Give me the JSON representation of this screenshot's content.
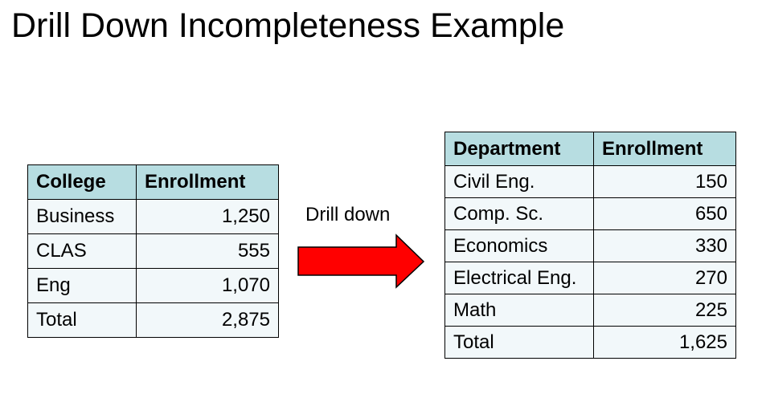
{
  "slide": {
    "title": "Drill Down Incompleteness Example"
  },
  "college_table": {
    "headers": [
      "College",
      "Enrollment"
    ],
    "rows": [
      {
        "name": "Business",
        "enrollment": "1,250"
      },
      {
        "name": "CLAS",
        "enrollment": "555"
      },
      {
        "name": "Eng",
        "enrollment": "1,070"
      },
      {
        "name": "Total",
        "enrollment": "2,875"
      }
    ]
  },
  "drill": {
    "label": "Drill down",
    "arrow_color": "#ff0000",
    "arrow_icon": "right-arrow-icon"
  },
  "department_table": {
    "headers": [
      "Department",
      "Enrollment"
    ],
    "rows": [
      {
        "name": "Civil Eng.",
        "enrollment": "150"
      },
      {
        "name": "Comp. Sc.",
        "enrollment": "650"
      },
      {
        "name": "Economics",
        "enrollment": "330"
      },
      {
        "name": "Electrical Eng.",
        "enrollment": "270"
      },
      {
        "name": "Math",
        "enrollment": "225"
      },
      {
        "name": "Total",
        "enrollment": "1,625"
      }
    ]
  },
  "colors": {
    "header_background": "#b7dde1",
    "cell_background": "#f2f8fa",
    "border": "#000000"
  }
}
